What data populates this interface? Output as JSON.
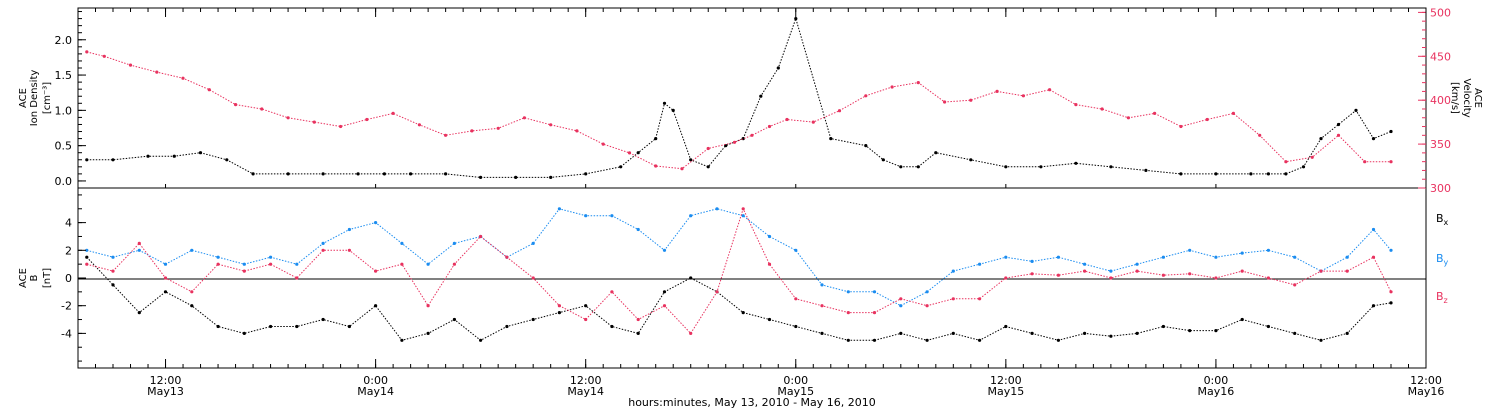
{
  "chart_data": [
    {
      "type": "scatter",
      "panel": "density-velocity",
      "left_axis": {
        "label_lines": [
          "ACE",
          "Ion Density"
        ],
        "unit": "[cm⁻³]",
        "ylim": [
          -0.1,
          2.45
        ],
        "ticks": [
          "0.0",
          "0.5",
          "1.0",
          "1.5",
          "2.0"
        ],
        "tick_values": [
          0,
          0.5,
          1.0,
          1.5,
          2.0
        ]
      },
      "right_axis": {
        "label_lines": [
          "ACE",
          "Velocity"
        ],
        "unit": "[km/s]",
        "ylim": [
          300,
          505
        ],
        "ticks": [
          "300",
          "350",
          "400",
          "450",
          "500"
        ],
        "tick_values": [
          300,
          350,
          400,
          450,
          500
        ],
        "color": "#e8325f"
      },
      "series": [
        {
          "axis": "left",
          "color": "#000000",
          "x": [
            7.5,
            9,
            11,
            12.5,
            14,
            15.5,
            17,
            19,
            21,
            23,
            24.5,
            26,
            28,
            30,
            32,
            34,
            36,
            38,
            39,
            40,
            40.5,
            41,
            42,
            43,
            44,
            45,
            46,
            47,
            48,
            50,
            52,
            53,
            54,
            55,
            56,
            58,
            60,
            62,
            64,
            66,
            68,
            70,
            72,
            74,
            75,
            76,
            77,
            78,
            79,
            80,
            81,
            82
          ],
          "y": [
            0.3,
            0.3,
            0.35,
            0.35,
            0.4,
            0.3,
            0.1,
            0.1,
            0.1,
            0.1,
            0.1,
            0.1,
            0.1,
            0.05,
            0.05,
            0.05,
            0.1,
            0.2,
            0.4,
            0.6,
            1.1,
            1.0,
            0.3,
            0.2,
            0.5,
            0.6,
            1.2,
            1.6,
            2.3,
            0.6,
            0.5,
            0.3,
            0.2,
            0.2,
            0.4,
            0.3,
            0.2,
            0.2,
            0.25,
            0.2,
            0.15,
            0.1,
            0.1,
            0.1,
            0.1,
            0.1,
            0.2,
            0.6,
            0.8,
            1.0,
            0.6,
            0.7
          ]
        },
        {
          "axis": "right",
          "color": "#e8325f",
          "x": [
            7.5,
            8.5,
            10,
            11.5,
            13,
            14.5,
            16,
            17.5,
            19,
            20.5,
            22,
            23.5,
            25,
            26.5,
            28,
            29.5,
            31,
            32.5,
            34,
            35.5,
            37,
            38.5,
            40,
            41.5,
            43,
            44.5,
            45.5,
            46.5,
            47.5,
            49,
            50.5,
            52,
            53.5,
            55,
            56.5,
            58,
            59.5,
            61,
            62.5,
            64,
            65.5,
            67,
            68.5,
            70,
            71.5,
            73,
            74.5,
            76,
            77.5,
            79,
            80.5,
            82
          ],
          "y": [
            455,
            450,
            440,
            432,
            425,
            412,
            395,
            390,
            380,
            375,
            370,
            378,
            385,
            372,
            360,
            365,
            368,
            380,
            372,
            365,
            350,
            340,
            325,
            322,
            345,
            352,
            360,
            370,
            378,
            375,
            388,
            405,
            415,
            420,
            398,
            400,
            410,
            405,
            412,
            395,
            390,
            380,
            385,
            370,
            378,
            385,
            360,
            330,
            335,
            360,
            330,
            330
          ]
        }
      ]
    },
    {
      "type": "scatter",
      "panel": "magnetic-field",
      "left_axis": {
        "label_lines": [
          "ACE",
          "B"
        ],
        "unit": "[nT]",
        "ylim": [
          -6.5,
          6.5
        ],
        "ticks": [
          "-4",
          "-2",
          "0",
          "2",
          "4"
        ],
        "tick_values": [
          -4,
          -2,
          0,
          2,
          4
        ]
      },
      "zero_line": true,
      "series": [
        {
          "name_base": "B",
          "name_sub": "x",
          "color": "#000000",
          "x": [
            7.5,
            9,
            10.5,
            12,
            13.5,
            15,
            16.5,
            18,
            19.5,
            21,
            22.5,
            24,
            25.5,
            27,
            28.5,
            30,
            31.5,
            33,
            34.5,
            36,
            37.5,
            39,
            40.5,
            42,
            43.5,
            45,
            46.5,
            48,
            49.5,
            51,
            52.5,
            54,
            55.5,
            57,
            58.5,
            60,
            61.5,
            63,
            64.5,
            66,
            67.5,
            69,
            70.5,
            72,
            73.5,
            75,
            76.5,
            78,
            79.5,
            81,
            82
          ],
          "y": [
            1.5,
            -0.5,
            -2.5,
            -1,
            -2,
            -3.5,
            -4,
            -3.5,
            -3.5,
            -3,
            -3.5,
            -2,
            -4.5,
            -4,
            -3,
            -4.5,
            -3.5,
            -3,
            -2.5,
            -2,
            -3.5,
            -4,
            -1,
            0,
            -1,
            -2.5,
            -3,
            -3.5,
            -4,
            -4.5,
            -4.5,
            -4,
            -4.5,
            -4,
            -4.5,
            -3.5,
            -4,
            -4.5,
            -4,
            -4.2,
            -4,
            -3.5,
            -3.8,
            -3.8,
            -3,
            -3.5,
            -4,
            -4.5,
            -4,
            -2,
            -1.8
          ]
        },
        {
          "name_base": "B",
          "name_sub": "y",
          "color": "#1a8cf0",
          "x": [
            7.5,
            9,
            10.5,
            12,
            13.5,
            15,
            16.5,
            18,
            19.5,
            21,
            22.5,
            24,
            25.5,
            27,
            28.5,
            30,
            31.5,
            33,
            34.5,
            36,
            37.5,
            39,
            40.5,
            42,
            43.5,
            45,
            46.5,
            48,
            49.5,
            51,
            52.5,
            54,
            55.5,
            57,
            58.5,
            60,
            61.5,
            63,
            64.5,
            66,
            67.5,
            69,
            70.5,
            72,
            73.5,
            75,
            76.5,
            78,
            79.5,
            81,
            82
          ],
          "y": [
            2,
            1.5,
            2,
            1,
            2,
            1.5,
            1,
            1.5,
            1,
            2.5,
            3.5,
            4,
            2.5,
            1,
            2.5,
            3,
            1.5,
            2.5,
            5,
            4.5,
            4.5,
            3.5,
            2,
            4.5,
            5,
            4.5,
            3,
            2,
            -0.5,
            -1,
            -1,
            -2,
            -1,
            0.5,
            1,
            1.5,
            1.2,
            1.5,
            1,
            0.5,
            1,
            1.5,
            2,
            1.5,
            1.8,
            2,
            1.5,
            0.5,
            1.5,
            3.5,
            2
          ]
        },
        {
          "name_base": "B",
          "name_sub": "z",
          "color": "#e8325f",
          "x": [
            7.5,
            9,
            10.5,
            12,
            13.5,
            15,
            16.5,
            18,
            19.5,
            21,
            22.5,
            24,
            25.5,
            27,
            28.5,
            30,
            31.5,
            33,
            34.5,
            36,
            37.5,
            39,
            40.5,
            42,
            43.5,
            45,
            46.5,
            48,
            49.5,
            51,
            52.5,
            54,
            55.5,
            57,
            58.5,
            60,
            61.5,
            63,
            64.5,
            66,
            67.5,
            69,
            70.5,
            72,
            73.5,
            75,
            76.5,
            78,
            79.5,
            81,
            82
          ],
          "y": [
            1,
            0.5,
            2.5,
            0,
            -1,
            1,
            0.5,
            1,
            0,
            2,
            2,
            0.5,
            1,
            -2,
            1,
            3,
            1.5,
            0,
            -2,
            -3,
            -1,
            -3,
            -2,
            -4,
            -1,
            5,
            1,
            -1.5,
            -2,
            -2.5,
            -2.5,
            -1.5,
            -2,
            -1.5,
            -1.5,
            0,
            0.3,
            0.2,
            0.5,
            0,
            0.5,
            0.2,
            0.3,
            0,
            0.5,
            0,
            -0.5,
            0.5,
            0.5,
            1.5,
            -1
          ]
        }
      ]
    }
  ],
  "x_axis": {
    "range_hours": [
      7,
      84
    ],
    "tick_hours": [
      12,
      24,
      36,
      48,
      60,
      72,
      84
    ],
    "tick_top": [
      "12:00",
      "0:00",
      "12:00",
      "0:00",
      "12:00",
      "0:00",
      "12:00"
    ],
    "tick_bottom": [
      "May13",
      "May14",
      "May14",
      "May15",
      "May15",
      "May16",
      "May16"
    ],
    "minor_every_hours": 1,
    "title": "hours:minutes, May 13, 2010 - May 16, 2010"
  }
}
